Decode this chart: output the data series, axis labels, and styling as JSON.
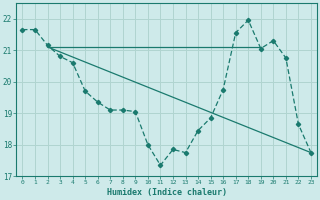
{
  "xlabel": "Humidex (Indice chaleur)",
  "bg_color": "#ceeaea",
  "line_color": "#1a7a6e",
  "grid_color": "#b0d4d0",
  "xlim": [
    -0.5,
    23.5
  ],
  "ylim": [
    17,
    22.5
  ],
  "yticks": [
    17,
    18,
    19,
    20,
    21,
    22
  ],
  "xticks": [
    0,
    1,
    2,
    3,
    4,
    5,
    6,
    7,
    8,
    9,
    10,
    11,
    12,
    13,
    14,
    15,
    16,
    17,
    18,
    19,
    20,
    21,
    22,
    23
  ],
  "curve1_x": [
    0,
    1,
    2,
    3,
    4,
    5,
    6,
    7,
    8,
    9,
    10,
    11,
    12,
    13,
    14,
    15,
    16,
    17,
    18,
    19,
    20,
    21,
    22,
    23
  ],
  "curve1_y": [
    21.65,
    21.65,
    21.15,
    20.8,
    20.6,
    19.7,
    19.35,
    19.1,
    19.1,
    19.05,
    18.0,
    17.35,
    17.85,
    17.75,
    18.45,
    18.85,
    19.75,
    21.55,
    21.95,
    21.05,
    21.3,
    20.75,
    18.65,
    17.75
  ],
  "curve2_x": [
    2,
    23
  ],
  "curve2_y": [
    21.1,
    17.75
  ],
  "curve3_x": [
    2,
    19
  ],
  "curve3_y": [
    21.1,
    21.1
  ]
}
